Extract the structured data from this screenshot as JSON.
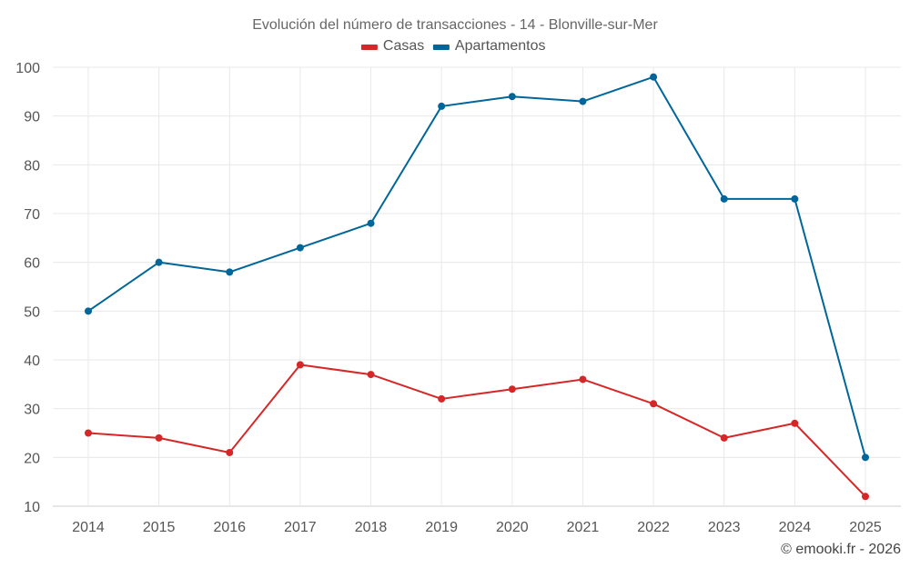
{
  "chart_data": {
    "type": "line",
    "title": "Evolución del número de transacciones - 14 - Blonville-sur-Mer",
    "categories": [
      "2014",
      "2015",
      "2016",
      "2017",
      "2018",
      "2019",
      "2020",
      "2021",
      "2022",
      "2023",
      "2024",
      "2025"
    ],
    "series": [
      {
        "name": "Casas",
        "color": "#d62728",
        "values": [
          25,
          24,
          21,
          39,
          37,
          32,
          34,
          36,
          31,
          24,
          27,
          12
        ]
      },
      {
        "name": "Apartamentos",
        "color": "#006699",
        "values": [
          50,
          60,
          58,
          63,
          68,
          92,
          94,
          93,
          98,
          73,
          73,
          20
        ]
      }
    ],
    "ylim": [
      10,
      100
    ],
    "yticks": [
      10,
      20,
      30,
      40,
      50,
      60,
      70,
      80,
      90,
      100
    ],
    "grid": true,
    "legend_position": "top-center"
  },
  "credit": "© emooki.fr - 2026"
}
